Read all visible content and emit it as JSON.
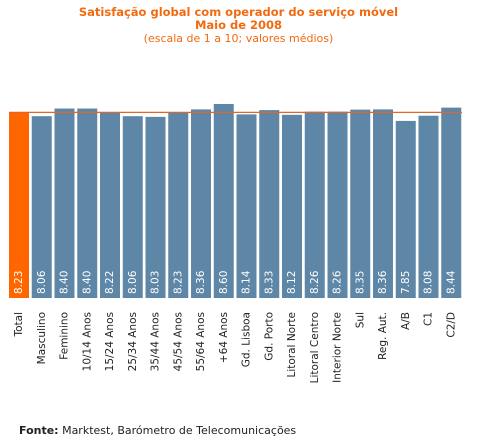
{
  "header": {
    "title_line1": "Satisfação global com operador do serviço móvel",
    "title_line2": "Maio de 2008",
    "subtitle": "(escala de 1 a 10; valores médios)"
  },
  "footer": {
    "source_label": "Fonte:",
    "source_text": "Marktest, Barómetro de Telecomunicações"
  },
  "colors": {
    "bar": "#5e86a6",
    "highlight_bar": "#ff6600",
    "reference_line": "#e0662a",
    "title": "#f26a10",
    "value_label": "#ffffff"
  },
  "chart_data": {
    "type": "bar",
    "title": "Satisfação global com operador do serviço móvel",
    "subtitle": "Maio de 2008 (escala de 1 a 10; valores médios)",
    "categories": [
      "Total",
      "Masculino",
      "Feminino",
      "10/14 Anos",
      "15/24 Anos",
      "25/34 Anos",
      "35/44 Anos",
      "45/54 Anos",
      "55/64 Anos",
      "+64 Anos",
      "Gd. Lisboa",
      "Gd. Porto",
      "Litoral Norte",
      "Litoral Centro",
      "Interior Norte",
      "Sul",
      "Reg. Aut.",
      "A/B",
      "C1",
      "C2/D"
    ],
    "values": [
      8.23,
      8.06,
      8.4,
      8.4,
      8.22,
      8.06,
      8.03,
      8.23,
      8.36,
      8.6,
      8.14,
      8.33,
      8.12,
      8.26,
      8.26,
      8.35,
      8.36,
      7.85,
      8.08,
      8.44
    ],
    "labels": [
      "8.23",
      "8.06",
      "8.40",
      "8.40",
      "8.22",
      "8.06",
      "8.03",
      "8.23",
      "8.36",
      "8.60",
      "8.14",
      "8.33",
      "8.12",
      "8.26",
      "8.26",
      "8.35",
      "8.36",
      "7.85",
      "8.08",
      "8.44"
    ],
    "highlight_index": 0,
    "reference_value": 8.23,
    "ylim": [
      0,
      8.6
    ],
    "grid": false,
    "legend": "none"
  }
}
